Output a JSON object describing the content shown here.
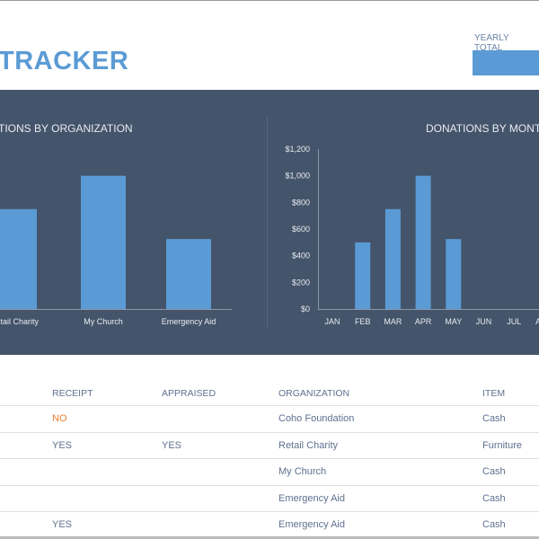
{
  "header": {
    "title": "TRACKER",
    "yearly_total_label": "YEARLY TOTAL"
  },
  "colors": {
    "accent": "#5B9BD5",
    "panel": "#44546A",
    "no": "#ED7D31"
  },
  "chart_data": [
    {
      "type": "bar",
      "title": "TIONS BY ORGANIZATION",
      "categories": [
        "Retail Charity",
        "My Church",
        "Emergency Aid"
      ],
      "values": [
        750,
        1000,
        525
      ],
      "ylim": [
        0,
        1200
      ],
      "grid": false
    },
    {
      "type": "bar",
      "title": "DONATIONS BY MONTH",
      "categories": [
        "JAN",
        "FEB",
        "MAR",
        "APR",
        "MAY",
        "JUN",
        "JUL",
        "AUG"
      ],
      "values": [
        0,
        500,
        750,
        1000,
        525,
        0,
        0,
        0
      ],
      "ylim": [
        0,
        1200
      ],
      "yticks": [
        "$0",
        "$200",
        "$400",
        "$600",
        "$800",
        "$1,000",
        "$1,200"
      ],
      "grid": false
    }
  ],
  "table": {
    "headers": {
      "receipt": "RECEIPT",
      "appraised": "APPRAISED",
      "organization": "ORGANIZATION",
      "item": "ITEM"
    },
    "rows": [
      {
        "receipt": "NO",
        "appraised": "",
        "organization": "Coho Foundation",
        "item": "Cash"
      },
      {
        "receipt": "YES",
        "appraised": "YES",
        "organization": "Retail Charity",
        "item": "Furniture"
      },
      {
        "receipt": "",
        "appraised": "",
        "organization": "My Church",
        "item": "Cash"
      },
      {
        "receipt": "",
        "appraised": "",
        "organization": "Emergency Aid",
        "item": "Cash"
      },
      {
        "receipt": "YES",
        "appraised": "",
        "organization": "Emergency Aid",
        "item": "Cash"
      }
    ]
  }
}
